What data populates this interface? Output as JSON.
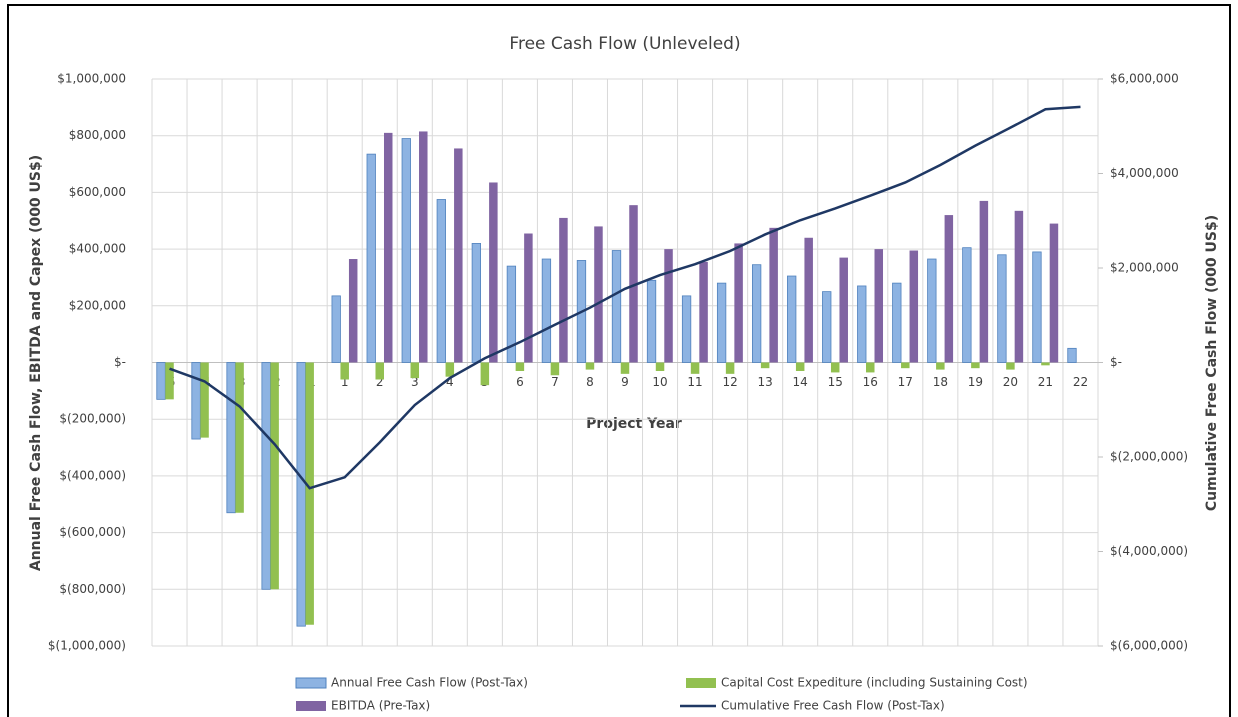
{
  "chart_data": {
    "type": "bar",
    "title": "Free Cash Flow (Unleveled)",
    "x_label": "Project Year",
    "y_label": "Annual Free Cash Flow, EBITDA and Capex (000 US$)",
    "y2_label": "Cumulative Free Cash Flow (000 US$)",
    "categories": [
      "-5",
      "-4",
      "-3",
      "-2",
      "-1",
      "1",
      "2",
      "3",
      "4",
      "5",
      "6",
      "7",
      "8",
      "9",
      "10",
      "11",
      "12",
      "13",
      "14",
      "15",
      "16",
      "17",
      "18",
      "19",
      "20",
      "21",
      "22"
    ],
    "series": [
      {
        "name": "Annual Free Cash Flow (Post-Tax)",
        "type": "bar",
        "color": "#8db3e2",
        "values": [
          -130000,
          -270000,
          -530000,
          -800000,
          -930000,
          235000,
          735000,
          790000,
          575000,
          420000,
          340000,
          365000,
          360000,
          395000,
          290000,
          235000,
          280000,
          345000,
          305000,
          250000,
          270000,
          280000,
          365000,
          405000,
          380000,
          390000,
          50000
        ]
      },
      {
        "name": "Capital Cost Expediture (including Sustaining Cost)",
        "type": "bar",
        "color": "#92c050",
        "values": [
          -130000,
          -265000,
          -530000,
          -800000,
          -925000,
          -60000,
          -60000,
          -55000,
          -50000,
          -80000,
          -30000,
          -45000,
          -25000,
          -40000,
          -30000,
          -40000,
          -40000,
          -20000,
          -30000,
          -35000,
          -35000,
          -20000,
          -25000,
          -20000,
          -25000,
          -10000,
          null
        ]
      },
      {
        "name": "EBITDA (Pre-Tax)",
        "type": "bar",
        "color": "#8064a2",
        "values": [
          null,
          null,
          null,
          null,
          null,
          365000,
          810000,
          815000,
          755000,
          635000,
          455000,
          510000,
          480000,
          555000,
          400000,
          355000,
          420000,
          475000,
          440000,
          370000,
          400000,
          395000,
          520000,
          570000,
          535000,
          490000,
          null
        ]
      },
      {
        "name": "Cumulative Free Cash Flow (Post-Tax)",
        "type": "line",
        "axis": "y2",
        "color": "#1f3864",
        "values": [
          -130000,
          -400000,
          -930000,
          -1730000,
          -2660000,
          -2430000,
          -1690000,
          -900000,
          -330000,
          90000,
          430000,
          800000,
          1160000,
          1560000,
          1850000,
          2080000,
          2360000,
          2710000,
          3010000,
          3260000,
          3530000,
          3810000,
          4180000,
          4590000,
          4970000,
          5360000,
          5410000
        ]
      }
    ],
    "ylim": [
      -1000000,
      1000000
    ],
    "yticks": [
      {
        "value": -1000000,
        "label": "$(1,000,000)"
      },
      {
        "value": -800000,
        "label": "$(800,000)"
      },
      {
        "value": -600000,
        "label": "$(600,000)"
      },
      {
        "value": -400000,
        "label": "$(400,000)"
      },
      {
        "value": -200000,
        "label": "$(200,000)"
      },
      {
        "value": 0,
        "label": "$-"
      },
      {
        "value": 200000,
        "label": "$200,000"
      },
      {
        "value": 400000,
        "label": "$400,000"
      },
      {
        "value": 600000,
        "label": "$600,000"
      },
      {
        "value": 800000,
        "label": "$800,000"
      },
      {
        "value": 1000000,
        "label": "$1,000,000"
      }
    ],
    "y2lim": [
      -6000000,
      6000000
    ],
    "y2ticks": [
      {
        "value": -6000000,
        "label": "$(6,000,000)"
      },
      {
        "value": -4000000,
        "label": "$(4,000,000)"
      },
      {
        "value": -2000000,
        "label": "$(2,000,000)"
      },
      {
        "value": 0,
        "label": "$-"
      },
      {
        "value": 2000000,
        "label": "$2,000,000"
      },
      {
        "value": 4000000,
        "label": "$4,000,000"
      },
      {
        "value": 6000000,
        "label": "$6,000,000"
      }
    ],
    "grid": true,
    "legend": "bottom"
  }
}
